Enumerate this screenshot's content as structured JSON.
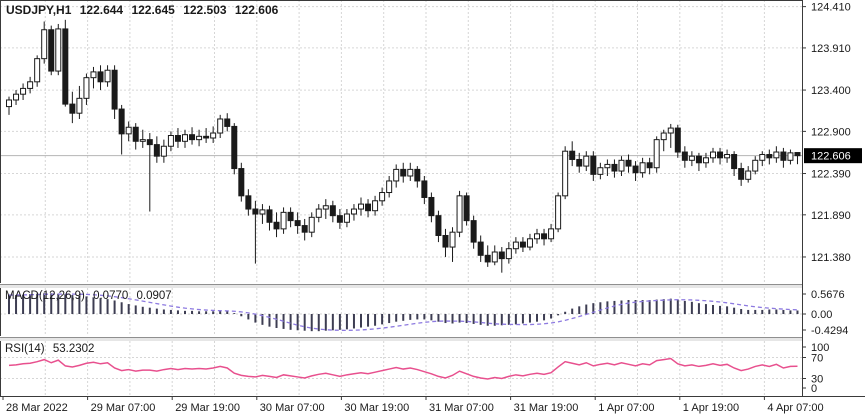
{
  "window_title": "USDJPY,H1",
  "header": {
    "symbol": "USDJPY,H1",
    "open": "122.644",
    "high": "122.645",
    "low": "122.503",
    "close": "122.606"
  },
  "indicators": {
    "macd": {
      "label": "MACD(12,26,9)",
      "value1": "0.0770",
      "value2": "0.0907",
      "axis_labels": [
        {
          "text": "0.5676",
          "value": 0.5676
        },
        {
          "text": "0.00",
          "value": 0.0
        },
        {
          "text": "-0.4294",
          "value": -0.4294
        }
      ]
    },
    "rsi": {
      "label": "RSI(14)",
      "value": "53.2302",
      "axis_labels": [
        {
          "text": "100",
          "value": 100
        },
        {
          "text": "70",
          "value": 70
        },
        {
          "text": "30",
          "value": 30
        },
        {
          "text": "0",
          "value": 0
        }
      ],
      "level_lines": [
        70,
        30
      ]
    }
  },
  "price_axis": {
    "labels": [
      {
        "text": "124.410",
        "value": 124.41
      },
      {
        "text": "123.910",
        "value": 123.91
      },
      {
        "text": "123.400",
        "value": 123.4
      },
      {
        "text": "122.900",
        "value": 122.9
      },
      {
        "text": "122.390",
        "value": 122.39
      },
      {
        "text": "121.890",
        "value": 121.89
      },
      {
        "text": "121.380",
        "value": 121.38
      }
    ],
    "current": {
      "text": "122.606",
      "value": 122.606
    }
  },
  "time_axis": {
    "labels": [
      "28 Mar 2022",
      "29 Mar 07:00",
      "29 Mar 19:00",
      "30 Mar 07:00",
      "30 Mar 19:00",
      "31 Mar 07:00",
      "31 Mar 19:00",
      "1 Apr 07:00",
      "1 Apr 19:00",
      "4 Apr 07:00"
    ]
  },
  "colors": {
    "bull": "#ffffff",
    "bear": "#1a1a1a",
    "outline": "#1a1a1a",
    "grid": "#d6d6d6",
    "price_line": "#b5b5b5",
    "macd_bar": "#3d3d52",
    "macd_signal": "#8d7ae0",
    "rsi_line": "#e8508e",
    "axis_line": "#3a3a3a",
    "tag_bg": "#000000",
    "tag_text": "#ffffff"
  },
  "chart_data": [
    {
      "type": "candlestick",
      "symbol": "USDJPY",
      "timeframe": "H1",
      "title": "USDJPY,H1 122.644 122.645 122.503 122.606",
      "ylim": [
        121.065,
        124.49
      ],
      "grid_prices": [
        124.41,
        123.91,
        123.4,
        122.9,
        122.39,
        121.89,
        121.38
      ],
      "current_price": 122.606,
      "ohlc": [
        [
          123.2,
          123.32,
          123.1,
          123.28
        ],
        [
          123.28,
          123.4,
          123.22,
          123.35
        ],
        [
          123.35,
          123.48,
          123.28,
          123.42
        ],
        [
          123.42,
          123.56,
          123.36,
          123.5
        ],
        [
          123.5,
          123.82,
          123.44,
          123.78
        ],
        [
          123.78,
          124.23,
          123.72,
          124.13
        ],
        [
          124.13,
          124.18,
          123.58,
          123.63
        ],
        [
          123.63,
          124.2,
          123.58,
          124.14
        ],
        [
          124.14,
          124.25,
          123.2,
          123.23
        ],
        [
          123.23,
          123.38,
          123.0,
          123.12
        ],
        [
          123.12,
          123.45,
          123.05,
          123.3
        ],
        [
          123.3,
          123.6,
          123.22,
          123.55
        ],
        [
          123.55,
          123.68,
          123.42,
          123.62
        ],
        [
          123.62,
          123.7,
          123.4,
          123.5
        ],
        [
          123.5,
          123.7,
          123.44,
          123.64
        ],
        [
          123.64,
          123.7,
          123.05,
          123.17
        ],
        [
          123.17,
          123.22,
          122.62,
          122.87
        ],
        [
          122.87,
          123.02,
          122.78,
          122.95
        ],
        [
          122.95,
          123.0,
          122.68,
          122.78
        ],
        [
          122.78,
          122.92,
          122.7,
          122.8
        ],
        [
          122.8,
          122.88,
          121.93,
          122.74
        ],
        [
          122.74,
          122.84,
          122.52,
          122.6
        ],
        [
          122.6,
          122.8,
          122.52,
          122.72
        ],
        [
          122.72,
          122.9,
          122.66,
          122.85
        ],
        [
          122.85,
          122.94,
          122.7,
          122.78
        ],
        [
          122.78,
          122.92,
          122.7,
          122.86
        ],
        [
          122.86,
          122.95,
          122.74,
          122.8
        ],
        [
          122.8,
          122.92,
          122.72,
          122.84
        ],
        [
          122.84,
          122.94,
          122.76,
          122.82
        ],
        [
          122.82,
          122.96,
          122.76,
          122.88
        ],
        [
          122.88,
          123.1,
          122.82,
          123.05
        ],
        [
          123.05,
          123.12,
          122.9,
          122.96
        ],
        [
          122.96,
          123.0,
          122.38,
          122.45
        ],
        [
          122.45,
          122.52,
          122.05,
          122.12
        ],
        [
          122.12,
          122.2,
          121.88,
          121.96
        ],
        [
          121.96,
          122.06,
          121.3,
          121.9
        ],
        [
          121.9,
          122.02,
          121.78,
          121.95
        ],
        [
          121.95,
          122.0,
          121.7,
          121.8
        ],
        [
          121.8,
          121.92,
          121.62,
          121.72
        ],
        [
          121.72,
          121.98,
          121.66,
          121.92
        ],
        [
          121.92,
          121.98,
          121.74,
          121.82
        ],
        [
          121.82,
          121.92,
          121.66,
          121.76
        ],
        [
          121.76,
          121.84,
          121.58,
          121.68
        ],
        [
          121.68,
          121.92,
          121.62,
          121.86
        ],
        [
          121.86,
          122.02,
          121.8,
          121.96
        ],
        [
          121.96,
          122.08,
          121.84,
          122.0
        ],
        [
          122.0,
          122.06,
          121.8,
          121.88
        ],
        [
          121.88,
          121.96,
          121.72,
          121.8
        ],
        [
          121.8,
          121.96,
          121.74,
          121.9
        ],
        [
          121.9,
          122.02,
          121.82,
          121.96
        ],
        [
          121.96,
          122.1,
          121.88,
          122.02
        ],
        [
          122.02,
          122.08,
          121.86,
          121.94
        ],
        [
          121.94,
          122.12,
          121.88,
          122.06
        ],
        [
          122.06,
          122.22,
          122.0,
          122.16
        ],
        [
          122.16,
          122.36,
          122.1,
          122.3
        ],
        [
          122.3,
          122.5,
          122.22,
          122.44
        ],
        [
          122.44,
          122.52,
          122.28,
          122.36
        ],
        [
          122.36,
          122.52,
          122.3,
          122.44
        ],
        [
          122.44,
          122.48,
          122.22,
          122.3
        ],
        [
          122.3,
          122.36,
          122.02,
          122.1
        ],
        [
          122.1,
          122.16,
          121.8,
          121.88
        ],
        [
          121.88,
          121.94,
          121.56,
          121.64
        ],
        [
          121.64,
          121.72,
          121.38,
          121.5
        ],
        [
          121.5,
          121.74,
          121.32,
          121.68
        ],
        [
          121.68,
          122.18,
          121.62,
          122.12
        ],
        [
          122.12,
          122.16,
          121.76,
          121.82
        ],
        [
          121.82,
          121.88,
          121.48,
          121.56
        ],
        [
          121.56,
          121.64,
          121.32,
          121.4
        ],
        [
          121.4,
          121.52,
          121.26,
          121.32
        ],
        [
          121.32,
          121.52,
          121.28,
          121.44
        ],
        [
          121.44,
          121.5,
          121.19,
          121.36
        ],
        [
          121.36,
          121.56,
          121.3,
          121.48
        ],
        [
          121.48,
          121.62,
          121.42,
          121.56
        ],
        [
          121.56,
          121.62,
          121.44,
          121.5
        ],
        [
          121.5,
          121.66,
          121.46,
          121.6
        ],
        [
          121.6,
          121.72,
          121.54,
          121.66
        ],
        [
          121.66,
          121.72,
          121.52,
          121.6
        ],
        [
          121.6,
          121.78,
          121.56,
          121.72
        ],
        [
          121.72,
          122.16,
          121.68,
          122.12
        ],
        [
          122.12,
          122.72,
          122.08,
          122.66
        ],
        [
          122.66,
          122.78,
          122.48,
          122.56
        ],
        [
          122.56,
          122.64,
          122.4,
          122.48
        ],
        [
          122.48,
          122.66,
          122.42,
          122.6
        ],
        [
          122.6,
          122.66,
          122.3,
          122.38
        ],
        [
          122.38,
          122.52,
          122.32,
          122.46
        ],
        [
          122.46,
          122.56,
          122.36,
          122.5
        ],
        [
          122.5,
          122.56,
          122.34,
          122.42
        ],
        [
          122.42,
          122.6,
          122.36,
          122.55
        ],
        [
          122.55,
          122.62,
          122.4,
          122.48
        ],
        [
          122.48,
          122.54,
          122.3,
          122.4
        ],
        [
          122.4,
          122.58,
          122.34,
          122.52
        ],
        [
          122.52,
          122.58,
          122.38,
          122.46
        ],
        [
          122.46,
          122.84,
          122.4,
          122.8
        ],
        [
          122.8,
          122.92,
          122.66,
          122.88
        ],
        [
          122.88,
          122.99,
          122.7,
          122.94
        ],
        [
          122.94,
          122.98,
          122.58,
          122.65
        ],
        [
          122.65,
          122.72,
          122.46,
          122.55
        ],
        [
          122.55,
          122.66,
          122.48,
          122.6
        ],
        [
          122.6,
          122.64,
          122.42,
          122.52
        ],
        [
          122.52,
          122.64,
          122.46,
          122.58
        ],
        [
          122.58,
          122.7,
          122.52,
          122.65
        ],
        [
          122.65,
          122.7,
          122.5,
          122.58
        ],
        [
          122.58,
          122.68,
          122.52,
          122.62
        ],
        [
          122.62,
          122.66,
          122.36,
          122.45
        ],
        [
          122.45,
          122.52,
          122.24,
          122.32
        ],
        [
          122.32,
          122.48,
          122.28,
          122.42
        ],
        [
          122.42,
          122.6,
          122.38,
          122.55
        ],
        [
          122.55,
          122.66,
          122.48,
          122.62
        ],
        [
          122.62,
          122.68,
          122.5,
          122.58
        ],
        [
          122.58,
          122.72,
          122.52,
          122.65
        ],
        [
          122.65,
          122.7,
          122.46,
          122.55
        ],
        [
          122.55,
          122.68,
          122.5,
          122.64
        ],
        [
          122.644,
          122.645,
          122.503,
          122.606
        ]
      ]
    },
    {
      "type": "bar",
      "name": "MACD(12,26,9) histogram with signal line",
      "ylim": [
        -0.487,
        0.576
      ],
      "last_macd": 0.077,
      "last_signal": 0.0907,
      "values": [
        0.42,
        0.42,
        0.43,
        0.44,
        0.45,
        0.46,
        0.46,
        0.45,
        0.44,
        0.42,
        0.4,
        0.39,
        0.37,
        0.35,
        0.33,
        0.3,
        0.26,
        0.22,
        0.19,
        0.16,
        0.14,
        0.12,
        0.1,
        0.09,
        0.08,
        0.07,
        0.07,
        0.06,
        0.06,
        0.06,
        0.07,
        0.06,
        0.02,
        -0.05,
        -0.12,
        -0.19,
        -0.24,
        -0.28,
        -0.31,
        -0.33,
        -0.35,
        -0.36,
        -0.37,
        -0.38,
        -0.38,
        -0.37,
        -0.36,
        -0.35,
        -0.34,
        -0.32,
        -0.3,
        -0.28,
        -0.26,
        -0.23,
        -0.2,
        -0.17,
        -0.15,
        -0.13,
        -0.12,
        -0.12,
        -0.14,
        -0.17,
        -0.2,
        -0.21,
        -0.19,
        -0.2,
        -0.22,
        -0.24,
        -0.26,
        -0.26,
        -0.25,
        -0.24,
        -0.23,
        -0.21,
        -0.19,
        -0.17,
        -0.14,
        -0.1,
        -0.03,
        0.05,
        0.12,
        0.17,
        0.21,
        0.24,
        0.26,
        0.28,
        0.29,
        0.3,
        0.31,
        0.31,
        0.31,
        0.31,
        0.32,
        0.33,
        0.34,
        0.32,
        0.29,
        0.27,
        0.24,
        0.22,
        0.2,
        0.18,
        0.17,
        0.14,
        0.11,
        0.09,
        0.09,
        0.09,
        0.1,
        0.1,
        0.09,
        0.08,
        0.077
      ]
    },
    {
      "type": "line",
      "name": "RSI(14)",
      "ylim": [
        -3.3,
        101.4
      ],
      "levels": [
        70,
        30
      ],
      "last_value": 53.2302,
      "values": [
        55,
        56,
        58,
        59,
        62,
        66,
        60,
        65,
        54,
        52,
        55,
        59,
        61,
        58,
        60,
        50,
        45,
        47,
        44,
        46,
        46,
        44,
        47,
        49,
        47,
        49,
        48,
        49,
        48,
        50,
        53,
        50,
        40,
        36,
        34,
        33,
        36,
        34,
        32,
        37,
        35,
        33,
        31,
        35,
        38,
        40,
        37,
        34,
        37,
        39,
        41,
        39,
        42,
        45,
        48,
        51,
        48,
        50,
        47,
        43,
        39,
        34,
        31,
        36,
        44,
        39,
        34,
        31,
        29,
        32,
        30,
        34,
        37,
        35,
        38,
        40,
        38,
        41,
        52,
        62,
        59,
        56,
        60,
        54,
        57,
        59,
        56,
        60,
        57,
        54,
        58,
        56,
        64,
        66,
        68,
        58,
        54,
        56,
        53,
        55,
        58,
        55,
        57,
        50,
        45,
        48,
        53,
        56,
        53,
        57,
        50,
        53,
        53.23
      ]
    }
  ]
}
